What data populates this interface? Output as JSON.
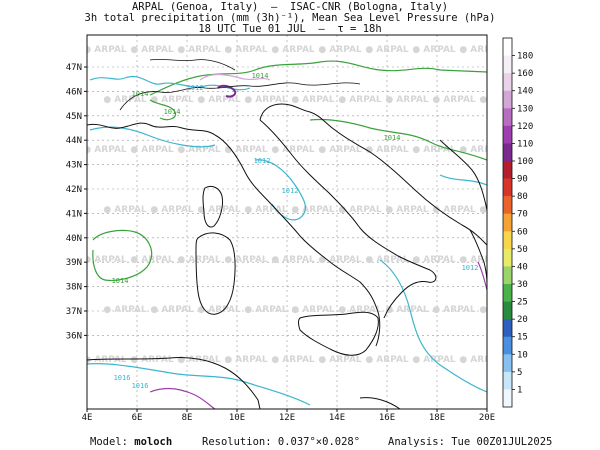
{
  "header": {
    "line1": "ARPAL (Genoa, Italy)  —  ISAC-CNR (Bologna, Italy)",
    "line2": "3h total precipitation (mm (3h)⁻¹), Mean Sea Level Pressure (hPa)",
    "line3": "18 UTC Tue 01 JUL  —  τ = 18h"
  },
  "map": {
    "lat_labels": [
      "47N",
      "46N",
      "45N",
      "44N",
      "43N",
      "42N",
      "41N",
      "40N",
      "39N",
      "38N",
      "37N",
      "36N"
    ],
    "lon_labels": [
      "4E",
      "6E",
      "8E",
      "10E",
      "12E",
      "14E",
      "16E",
      "18E",
      "20E"
    ],
    "watermark": "ARPAL",
    "isobar_labels": [
      "1014",
      "1012",
      "1014",
      "1012",
      "1012",
      "1014",
      "1014",
      "1014",
      "1016",
      "1016",
      "1012"
    ]
  },
  "colorbar": {
    "levels": [
      "180",
      "160",
      "140",
      "130",
      "120",
      "110",
      "100",
      "90",
      "80",
      "70",
      "60",
      "50",
      "40",
      "30",
      "25",
      "20",
      "15",
      "10",
      "5",
      "1"
    ],
    "colors": [
      "#ffffff",
      "#f5f0f5",
      "#e9d2ea",
      "#d2a6d6",
      "#b76dc0",
      "#9d3fae",
      "#7a2a8f",
      "#b31d2c",
      "#d8352a",
      "#e9632a",
      "#f4a233",
      "#f7d64b",
      "#e8ea6a",
      "#9bd46b",
      "#4bb14a",
      "#2a8b3e",
      "#2c5fbe",
      "#4a8fe0",
      "#86c0ef",
      "#c7e6fa",
      "#eef8fe"
    ]
  },
  "footer": {
    "model_label": "Model:",
    "model_value": "moloch",
    "resolution_label": "Resolution:",
    "resolution_value": "0.037°×0.028°",
    "analysis_label": "Analysis:",
    "analysis_value": "Tue 00Z01JUL2025"
  }
}
